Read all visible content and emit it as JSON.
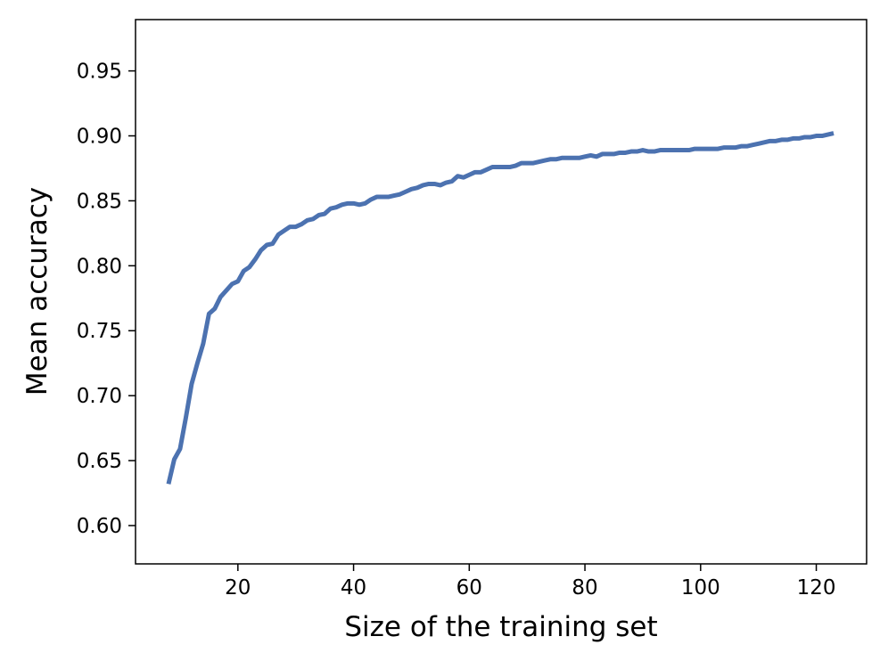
{
  "chart_data": {
    "type": "line",
    "title": "",
    "xlabel": "Size of the training set",
    "ylabel": "Mean accuracy",
    "xlim": [
      2.3,
      128.7
    ],
    "ylim": [
      0.5705,
      0.9895
    ],
    "x_ticks": [
      20,
      40,
      60,
      80,
      100,
      120
    ],
    "x_tick_labels": [
      "20",
      "40",
      "60",
      "80",
      "100",
      "120"
    ],
    "y_ticks": [
      0.6,
      0.65,
      0.7,
      0.75,
      0.8,
      0.85,
      0.9,
      0.95
    ],
    "y_tick_labels": [
      "0.60",
      "0.65",
      "0.70",
      "0.75",
      "0.80",
      "0.85",
      "0.90",
      "0.95"
    ],
    "grid": false,
    "legend": "none",
    "series": [
      {
        "color": "#4c72b0",
        "x": [
          8,
          9,
          10,
          11,
          12,
          13,
          14,
          15,
          16,
          17,
          18,
          19,
          20,
          21,
          22,
          23,
          24,
          25,
          26,
          27,
          28,
          29,
          30,
          31,
          32,
          33,
          34,
          35,
          36,
          37,
          38,
          39,
          40,
          41,
          42,
          43,
          44,
          45,
          46,
          47,
          48,
          49,
          50,
          51,
          52,
          53,
          54,
          55,
          56,
          57,
          58,
          59,
          60,
          61,
          62,
          63,
          64,
          65,
          66,
          67,
          68,
          69,
          70,
          71,
          72,
          73,
          74,
          75,
          76,
          77,
          78,
          79,
          80,
          81,
          82,
          83,
          84,
          85,
          86,
          87,
          88,
          89,
          90,
          91,
          92,
          93,
          94,
          95,
          96,
          97,
          98,
          99,
          100,
          101,
          102,
          103,
          104,
          105,
          106,
          107,
          108,
          109,
          110,
          111,
          112,
          113,
          114,
          115,
          116,
          117,
          118,
          119,
          120,
          121,
          122,
          123
        ],
        "y": [
          0.632,
          0.651,
          0.659,
          0.683,
          0.709,
          0.725,
          0.74,
          0.763,
          0.767,
          0.776,
          0.781,
          0.786,
          0.788,
          0.796,
          0.799,
          0.805,
          0.812,
          0.816,
          0.817,
          0.824,
          0.827,
          0.83,
          0.83,
          0.832,
          0.835,
          0.836,
          0.839,
          0.84,
          0.844,
          0.845,
          0.847,
          0.848,
          0.848,
          0.847,
          0.848,
          0.851,
          0.853,
          0.853,
          0.853,
          0.854,
          0.855,
          0.857,
          0.859,
          0.86,
          0.862,
          0.863,
          0.863,
          0.862,
          0.864,
          0.865,
          0.869,
          0.868,
          0.87,
          0.872,
          0.872,
          0.874,
          0.876,
          0.876,
          0.876,
          0.876,
          0.877,
          0.879,
          0.879,
          0.879,
          0.88,
          0.881,
          0.882,
          0.882,
          0.883,
          0.883,
          0.883,
          0.883,
          0.884,
          0.885,
          0.884,
          0.886,
          0.886,
          0.886,
          0.887,
          0.887,
          0.888,
          0.888,
          0.889,
          0.888,
          0.888,
          0.889,
          0.889,
          0.889,
          0.889,
          0.889,
          0.889,
          0.89,
          0.89,
          0.89,
          0.89,
          0.89,
          0.891,
          0.891,
          0.891,
          0.892,
          0.892,
          0.893,
          0.894,
          0.895,
          0.896,
          0.896,
          0.897,
          0.897,
          0.898,
          0.898,
          0.899,
          0.899,
          0.9,
          0.9,
          0.901,
          0.902
        ]
      }
    ]
  }
}
